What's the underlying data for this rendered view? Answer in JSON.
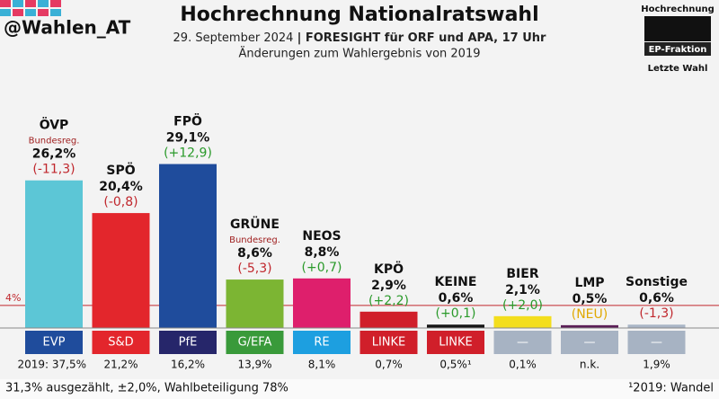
{
  "chart_data": {
    "type": "bar",
    "handle": "@Wahlen_AT",
    "title": "Hochrechnung Nationalratswahl",
    "subtitle_date": "29. September 2024",
    "subtitle_source": "| FORESIGHT für ORF und APA, 17 Uhr",
    "subtitle2": "Änderungen zum Wahlergebnis von 2019",
    "legend": {
      "bar": "Hochrechnung",
      "group": "EP-Fraktion",
      "last": "Letzte Wahl"
    },
    "categories": [
      "ÖVP",
      "SPÖ",
      "FPÖ",
      "GRÜNE",
      "NEOS",
      "KPÖ",
      "KEINE",
      "BIER",
      "LMP",
      "Sonstige"
    ],
    "values": [
      26.2,
      20.4,
      29.1,
      8.6,
      8.8,
      2.9,
      0.6,
      2.1,
      0.5,
      0.6
    ],
    "value_labels": [
      "26,2%",
      "20,4%",
      "29,1%",
      "8,6%",
      "8,8%",
      "2,9%",
      "0,6%",
      "2,1%",
      "0,5%",
      "0,6%"
    ],
    "colors": [
      "#5cc6d6",
      "#e3262c",
      "#1f4c9c",
      "#7cb533",
      "#de1f6c",
      "#d01f2a",
      "#151515",
      "#f3de1d",
      "#5b1d56",
      "#a9b5c6"
    ],
    "notes": [
      "Bundesreg.",
      null,
      null,
      "Bundesreg.",
      null,
      null,
      null,
      null,
      null,
      null
    ],
    "changes": [
      "(-11,3)",
      "(-0,8)",
      "(+12,9)",
      "(-5,3)",
      "(+0,7)",
      "(+2,2)",
      "(+0,1)",
      "(+2,0)",
      "(NEU)",
      "(-1,3)"
    ],
    "change_colors": [
      "#c0272d",
      "#c0272d",
      "#2a9a2a",
      "#c0272d",
      "#2a9a2a",
      "#2a9a2a",
      "#2a9a2a",
      "#2a9a2a",
      "#e0a800",
      "#c0272d"
    ],
    "groups": [
      "EVP",
      "S&D",
      "PfE",
      "G/EFA",
      "RE",
      "LINKE",
      "LINKE",
      "—",
      "—",
      "—"
    ],
    "group_colors": [
      "#1f4c9c",
      "#e3262c",
      "#26266a",
      "#399a3a",
      "#1d9fe0",
      "#d01f2a",
      "#d01f2a",
      "#a7b3c3",
      "#a7b3c3",
      "#a7b3c3"
    ],
    "last_election": [
      "2019: 37,5%",
      "21,2%",
      "16,2%",
      "13,9%",
      "8,1%",
      "0,7%",
      "0,5%¹",
      "0,1%",
      "n.k.",
      "1,9%"
    ],
    "threshold": {
      "value": 4,
      "label": "4%"
    },
    "footer": "31,3% ausgezählt, ±2,0%, Wahlbeteiligung 78%",
    "footnote": "¹2019: Wandel"
  }
}
